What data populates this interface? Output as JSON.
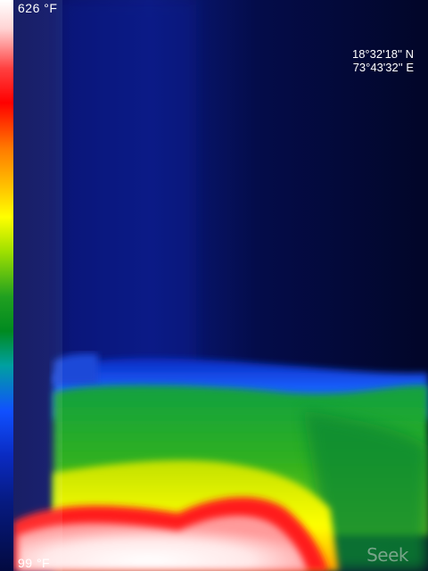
{
  "scale": {
    "max_label": "626 °F",
    "min_label": "99 °F"
  },
  "gps": {
    "latitude": "18°32'18'' N",
    "longitude": "73°43'32'' E"
  },
  "logo": {
    "text": "Seek"
  },
  "palette": {
    "coldest": "#03073a",
    "cold": "#1050ff",
    "mid": "#20a020",
    "warm": "#ffff00",
    "hot": "#ff0000",
    "hottest": "#ffffff"
  }
}
